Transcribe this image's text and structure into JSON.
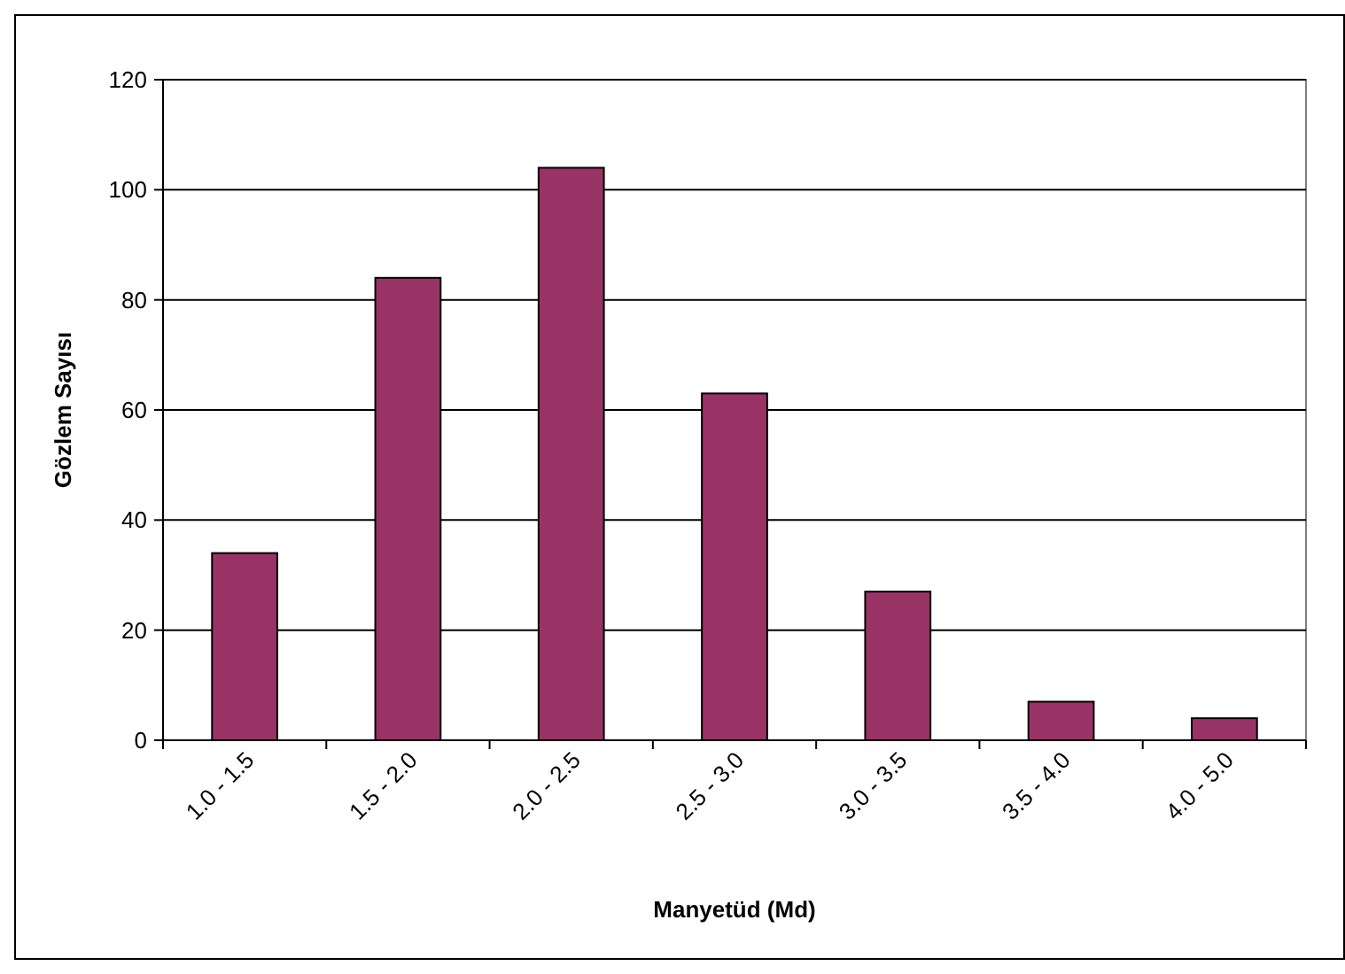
{
  "chart_data": {
    "type": "bar",
    "xlabel": "Manyetüd (Md)",
    "ylabel": "Gözlem Sayısı",
    "categories": [
      "1.0 - 1.5",
      "1.5 - 2.0",
      "2.0 - 2.5",
      "2.5 - 3.0",
      "3.0 - 3.5",
      "3.5 - 4.0",
      "4.0 - 5.0"
    ],
    "values": [
      34,
      84,
      104,
      63,
      27,
      7,
      4
    ],
    "color": "#993366",
    "ylim": [
      0,
      120
    ],
    "yticks": [
      0,
      20,
      40,
      60,
      80,
      100,
      120
    ],
    "grid": "y"
  }
}
